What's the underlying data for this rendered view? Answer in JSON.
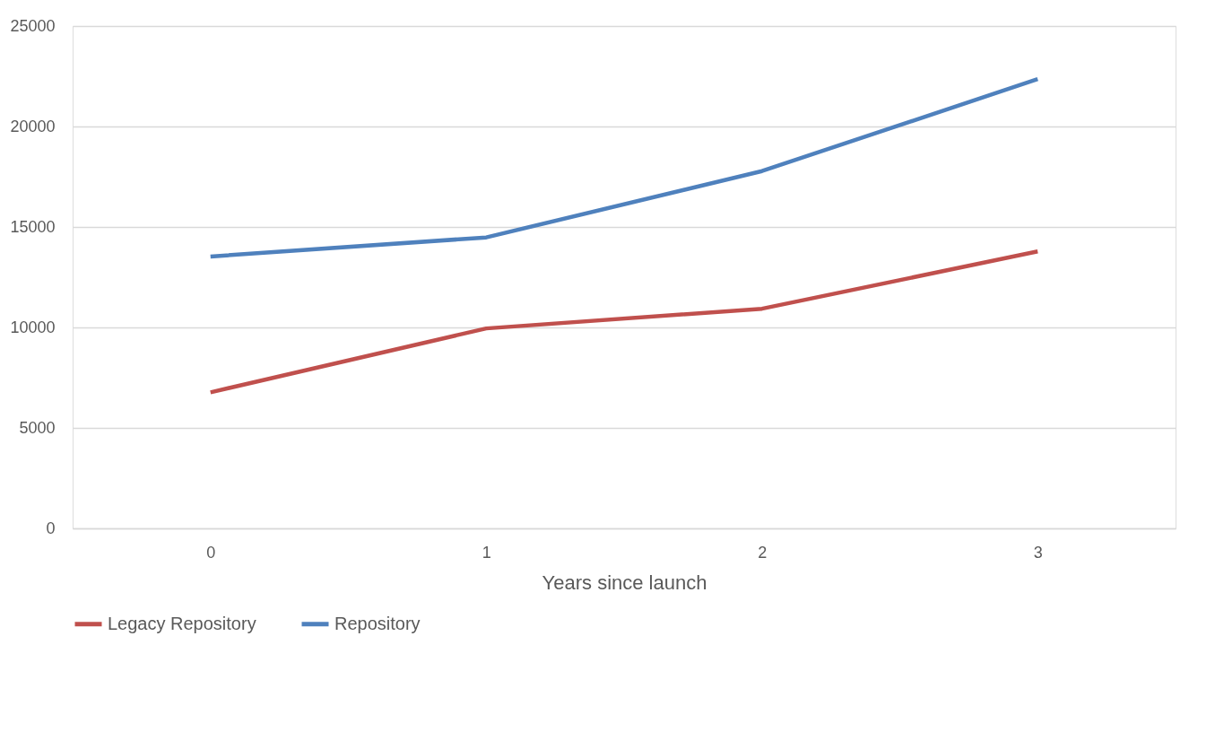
{
  "chart_data": {
    "type": "line",
    "xlabel": "Years since launch",
    "categories": [
      "0",
      "1",
      "2",
      "3"
    ],
    "series": [
      {
        "name": "Legacy Repository",
        "color": "#c0504d",
        "values": [
          6770,
          9950,
          10930,
          13780
        ]
      },
      {
        "name": "Repository",
        "color": "#4f81bd",
        "values": [
          13530,
          14480,
          17780,
          22360
        ]
      }
    ],
    "ylim": [
      0,
      25000
    ],
    "yticks": [
      0,
      5000,
      10000,
      15000,
      20000,
      25000
    ],
    "grid": "y",
    "legend": "bottom",
    "marker": "none",
    "line_style": "solid"
  }
}
